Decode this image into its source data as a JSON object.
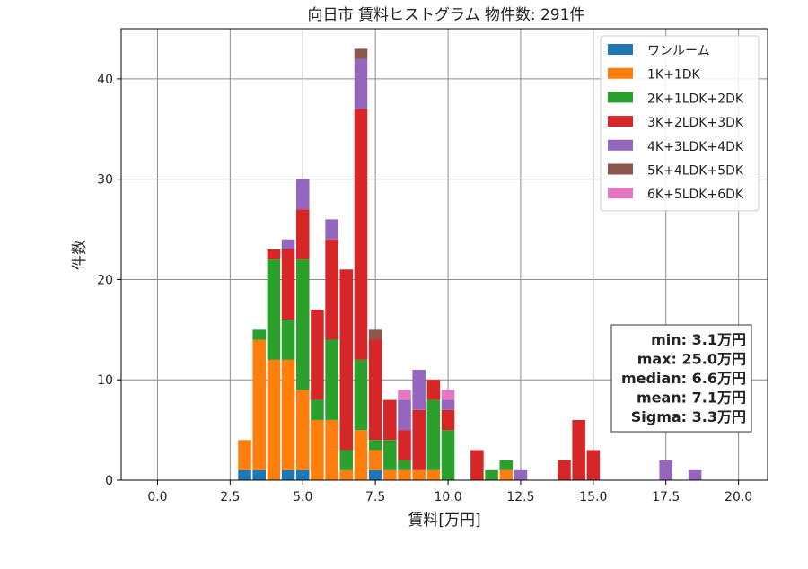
{
  "chart_data": {
    "type": "bar",
    "stacked": true,
    "title": "向日市 賃料ヒストグラム  物件数: 291件",
    "xlabel": "賃料[万円]",
    "ylabel": "件数",
    "xlim": [
      -1.25,
      21.0
    ],
    "ylim": [
      0,
      45
    ],
    "bin_width": 0.5,
    "grid": true,
    "legend_position": "top-right",
    "x_ticks": [
      "0.0",
      "2.5",
      "5.0",
      "7.5",
      "10.0",
      "12.5",
      "15.0",
      "17.5",
      "20.0"
    ],
    "y_ticks": [
      "0",
      "10",
      "20",
      "30",
      "40"
    ],
    "x": [
      3.0,
      3.5,
      4.0,
      4.5,
      5.0,
      5.5,
      6.0,
      6.5,
      7.0,
      7.5,
      8.0,
      8.5,
      9.0,
      9.5,
      10.0,
      11.0,
      11.5,
      12.0,
      12.5,
      14.0,
      14.5,
      15.0,
      17.5,
      18.5
    ],
    "series": [
      {
        "name": "ワンルーム",
        "color": "#1f77b4",
        "values": [
          1,
          1,
          0,
          1,
          1,
          0,
          0,
          0,
          0,
          1,
          0,
          0,
          0,
          0,
          0,
          0,
          0,
          0,
          0,
          0,
          0,
          0,
          0,
          0
        ]
      },
      {
        "name": "1K+1DK",
        "color": "#ff7f0e",
        "values": [
          3,
          13,
          12,
          11,
          8,
          6,
          6,
          1,
          5,
          2,
          1,
          1,
          1,
          1,
          0,
          0,
          0,
          1,
          0,
          0,
          0,
          0,
          0,
          0
        ]
      },
      {
        "name": "2K+1LDK+2DK",
        "color": "#2ca02c",
        "values": [
          0,
          1,
          10,
          4,
          13,
          2,
          8,
          2,
          7,
          1,
          3,
          1,
          0,
          7,
          5,
          0,
          1,
          1,
          0,
          0,
          0,
          0,
          0,
          0
        ]
      },
      {
        "name": "3K+2LDK+3DK",
        "color": "#d62728",
        "values": [
          0,
          0,
          1,
          7,
          5,
          9,
          10,
          18,
          25,
          10,
          4,
          3,
          6,
          2,
          2,
          3,
          0,
          0,
          0,
          2,
          6,
          3,
          0,
          0
        ]
      },
      {
        "name": "4K+3LDK+4DK",
        "color": "#9467bd",
        "values": [
          0,
          0,
          0,
          1,
          3,
          0,
          2,
          0,
          5,
          0,
          0,
          3,
          4,
          0,
          1,
          0,
          0,
          0,
          1,
          0,
          0,
          0,
          2,
          1
        ]
      },
      {
        "name": "5K+4LDK+5DK",
        "color": "#8c564b",
        "values": [
          0,
          0,
          0,
          0,
          0,
          0,
          0,
          0,
          1,
          1,
          0,
          0,
          0,
          0,
          0,
          0,
          0,
          0,
          0,
          0,
          0,
          0,
          0,
          0
        ]
      },
      {
        "name": "6K+5LDK+6DK",
        "color": "#e377c2",
        "values": [
          0,
          0,
          0,
          0,
          0,
          0,
          0,
          0,
          0,
          0,
          0,
          1,
          0,
          0,
          1,
          0,
          0,
          0,
          0,
          0,
          0,
          0,
          0,
          0
        ]
      }
    ],
    "stats": [
      "min: 3.1万円",
      "max: 25.0万円",
      "median: 6.6万円",
      "mean: 7.1万円",
      "Sigma: 3.3万円"
    ]
  }
}
